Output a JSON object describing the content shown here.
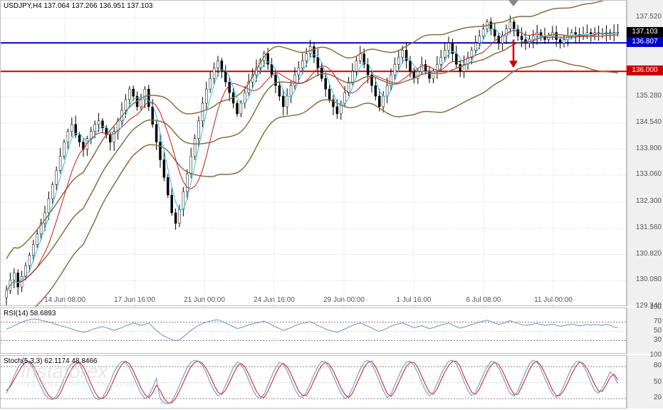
{
  "header": {
    "symbol_label": "USDJPY,H4",
    "ohlc": "137.064 137.266 136.951 137.103"
  },
  "main_chart": {
    "type": "candlestick",
    "background_color": "#ffffff",
    "grid_color": "#d0d0d0",
    "ylim": [
      129.34,
      138.0
    ],
    "yticks": [
      137.52,
      137.103,
      136.807,
      136.0,
      135.28,
      134.54,
      133.8,
      133.06,
      132.3,
      131.56,
      130.82,
      130.08,
      129.34
    ],
    "xticks": [
      "14 Jun 08:00",
      "17 Jun 16:00",
      "21 Jun 00:00",
      "24 Jun 16:00",
      "29 Jun 00:00",
      "1 Jul 16:00",
      "6 Jul 08:00",
      "11 Jul 00:00"
    ],
    "current_price_tag": {
      "value": "137.103",
      "color": "#000000"
    },
    "levels": [
      {
        "value": 136.807,
        "color": "#0000cc",
        "tag": "136.807"
      },
      {
        "value": 136.0,
        "color": "#cc0000",
        "tag": "136.000"
      }
    ],
    "indicators": {
      "bollinger": {
        "upper_color": "#8b6d3f",
        "lower_color": "#8b6d3f",
        "mid_color": "#8b6d3f",
        "line_width": 1.5
      },
      "ma_fast": {
        "color": "#29c5e6",
        "line_width": 1
      },
      "ma_slow": {
        "color": "#d01717",
        "line_width": 1
      }
    },
    "chart_data": {
      "n_bars": 160,
      "x_start": 8,
      "x_step": 5.4,
      "open": [
        129.6,
        129.8,
        130.1,
        130.3,
        129.9,
        130.2,
        130.5,
        130.8,
        131.1,
        131.4,
        131.7,
        132.0,
        132.4,
        132.8,
        133.2,
        133.6,
        134.0,
        134.3,
        134.5,
        134.2,
        134.0,
        133.8,
        134.1,
        134.3,
        134.5,
        134.6,
        134.4,
        134.2,
        134.0,
        134.3,
        134.6,
        134.9,
        135.2,
        135.5,
        135.3,
        135.0,
        135.2,
        135.5,
        135.0,
        134.5,
        134.0,
        133.5,
        133.0,
        132.5,
        132.0,
        131.7,
        132.1,
        132.6,
        133.1,
        133.6,
        134.1,
        134.6,
        135.1,
        135.5,
        135.8,
        136.1,
        136.3,
        136.0,
        135.7,
        135.4,
        135.1,
        134.8,
        135.1,
        135.4,
        135.7,
        135.9,
        136.1,
        136.3,
        136.5,
        136.2,
        135.9,
        135.6,
        135.3,
        135.0,
        135.3,
        135.6,
        135.9,
        136.1,
        136.3,
        136.5,
        136.7,
        136.4,
        136.1,
        135.8,
        135.5,
        135.2,
        135.0,
        134.8,
        135.1,
        135.4,
        135.7,
        136.0,
        136.3,
        136.5,
        136.2,
        135.9,
        135.6,
        135.3,
        135.0,
        135.3,
        135.6,
        135.9,
        136.2,
        136.4,
        136.6,
        136.3,
        136.0,
        135.8,
        136.0,
        136.2,
        136.0,
        135.8,
        136.0,
        136.2,
        136.4,
        136.6,
        136.8,
        136.5,
        136.2,
        136.0,
        136.2,
        136.4,
        136.6,
        136.8,
        137.0,
        137.2,
        137.4,
        137.2,
        137.0,
        136.8,
        137.0,
        137.2,
        137.4,
        137.2,
        137.0,
        136.9,
        136.8,
        136.9,
        137.0,
        137.1,
        137.0,
        136.9,
        137.0,
        137.1,
        136.9,
        136.8,
        136.9,
        137.0,
        137.1,
        137.05,
        137.0,
        137.05,
        137.1,
        137.05,
        137.1,
        137.08,
        137.06,
        137.1,
        137.08,
        137.1
      ],
      "close": [
        129.8,
        130.1,
        130.3,
        129.9,
        130.2,
        130.5,
        130.8,
        131.1,
        131.4,
        131.7,
        132.0,
        132.4,
        132.8,
        133.2,
        133.6,
        134.0,
        134.3,
        134.5,
        134.2,
        134.0,
        133.8,
        134.1,
        134.3,
        134.5,
        134.6,
        134.4,
        134.2,
        134.0,
        134.3,
        134.6,
        134.9,
        135.2,
        135.5,
        135.3,
        135.0,
        135.2,
        135.5,
        135.0,
        134.5,
        134.0,
        133.5,
        133.0,
        132.5,
        132.0,
        131.7,
        132.1,
        132.6,
        133.1,
        133.6,
        134.1,
        134.6,
        135.1,
        135.5,
        135.8,
        136.1,
        136.3,
        136.0,
        135.7,
        135.4,
        135.1,
        134.8,
        135.1,
        135.4,
        135.7,
        135.9,
        136.1,
        136.3,
        136.5,
        136.2,
        135.9,
        135.6,
        135.3,
        135.0,
        135.3,
        135.6,
        135.9,
        136.1,
        136.3,
        136.5,
        136.7,
        136.4,
        136.1,
        135.8,
        135.5,
        135.2,
        135.0,
        134.8,
        135.1,
        135.4,
        135.7,
        136.0,
        136.3,
        136.5,
        136.2,
        135.9,
        135.6,
        135.3,
        135.0,
        135.3,
        135.6,
        135.9,
        136.2,
        136.4,
        136.6,
        136.3,
        136.0,
        135.8,
        136.0,
        136.2,
        136.0,
        135.8,
        136.0,
        136.2,
        136.4,
        136.6,
        136.8,
        136.5,
        136.2,
        136.0,
        136.2,
        136.4,
        136.6,
        136.8,
        137.0,
        137.2,
        137.4,
        137.2,
        137.0,
        136.8,
        137.0,
        137.2,
        137.4,
        137.2,
        137.0,
        136.9,
        136.8,
        136.9,
        137.0,
        137.1,
        137.0,
        136.9,
        137.0,
        137.1,
        136.9,
        136.8,
        136.9,
        137.0,
        137.1,
        137.05,
        137.0,
        137.05,
        137.1,
        137.05,
        137.1,
        137.08,
        137.06,
        137.1,
        137.08,
        137.1,
        137.1
      ],
      "high_off": 0.25,
      "low_off": 0.25
    },
    "arrow": {
      "x": 720,
      "y_from": 136.9,
      "y_to": 136.1,
      "color": "#cc0000"
    }
  },
  "rsi": {
    "label": "RSI(14) 58.6893",
    "type": "line",
    "ylim": [
      0,
      100
    ],
    "yticks": [
      100,
      70,
      50,
      30
    ],
    "guide_levels": [
      70,
      30
    ],
    "line_color": "#6a8fc7",
    "line_width": 1,
    "values": [
      55,
      58,
      62,
      66,
      70,
      73,
      75,
      77,
      76,
      74,
      72,
      70,
      68,
      65,
      62,
      60,
      58,
      55,
      52,
      50,
      48,
      50,
      53,
      56,
      58,
      60,
      58,
      55,
      52,
      55,
      58,
      62,
      65,
      68,
      66,
      63,
      65,
      68,
      60,
      52,
      45,
      40,
      36,
      32,
      30,
      32,
      38,
      45,
      52,
      58,
      63,
      67,
      70,
      72,
      74,
      75,
      72,
      68,
      64,
      60,
      56,
      58,
      61,
      64,
      66,
      68,
      70,
      72,
      68,
      64,
      60,
      56,
      52,
      55,
      58,
      62,
      65,
      67,
      69,
      71,
      67,
      63,
      59,
      55,
      52,
      50,
      48,
      51,
      55,
      59,
      63,
      66,
      68,
      65,
      61,
      57,
      53,
      50,
      53,
      57,
      61,
      64,
      66,
      68,
      65,
      61,
      58,
      60,
      62,
      59,
      56,
      58,
      61,
      64,
      66,
      68,
      64,
      60,
      57,
      59,
      62,
      65,
      67,
      70,
      72,
      74,
      71,
      68,
      65,
      67,
      70,
      73,
      70,
      67,
      65,
      63,
      64,
      66,
      67,
      65,
      63,
      64,
      66,
      63,
      61,
      62,
      64,
      66,
      64,
      62,
      63,
      65,
      63,
      65,
      64,
      63,
      65,
      63,
      59,
      58
    ]
  },
  "stoch": {
    "label": "Stoch(5,3,3) 62.1174 48.8466",
    "type": "line",
    "ylim": [
      0,
      100
    ],
    "yticks": [
      100,
      80,
      50,
      20
    ],
    "guide_levels": [
      80,
      20
    ],
    "k_color": "#6a8fc7",
    "d_color": "#d01717",
    "line_width": 1,
    "k_values": [
      30,
      45,
      62,
      78,
      88,
      92,
      88,
      75,
      58,
      42,
      28,
      20,
      18,
      25,
      40,
      58,
      75,
      85,
      90,
      85,
      70,
      52,
      35,
      22,
      18,
      22,
      35,
      52,
      70,
      82,
      90,
      88,
      78,
      62,
      45,
      30,
      20,
      25,
      40,
      58,
      20,
      12,
      10,
      15,
      28,
      45,
      62,
      78,
      88,
      92,
      90,
      82,
      68,
      50,
      35,
      25,
      30,
      45,
      62,
      78,
      88,
      85,
      72,
      55,
      38,
      25,
      20,
      28,
      45,
      62,
      78,
      88,
      85,
      72,
      55,
      38,
      25,
      22,
      32,
      48,
      65,
      80,
      90,
      88,
      78,
      62,
      45,
      30,
      20,
      25,
      40,
      58,
      75,
      88,
      92,
      85,
      70,
      52,
      35,
      22,
      28,
      45,
      62,
      78,
      88,
      90,
      82,
      68,
      50,
      35,
      25,
      32,
      48,
      65,
      80,
      90,
      92,
      85,
      70,
      52,
      35,
      25,
      32,
      48,
      65,
      80,
      90,
      88,
      78,
      62,
      45,
      30,
      25,
      35,
      52,
      70,
      85,
      92,
      88,
      75,
      58,
      42,
      28,
      22,
      30,
      45,
      62,
      78,
      88,
      90,
      82,
      68,
      50,
      35,
      30,
      40,
      55,
      70,
      62,
      48
    ],
    "d_values": [
      35,
      42,
      55,
      68,
      80,
      88,
      90,
      82,
      68,
      52,
      38,
      26,
      20,
      20,
      30,
      46,
      62,
      76,
      85,
      88,
      80,
      65,
      48,
      32,
      22,
      20,
      26,
      40,
      56,
      72,
      84,
      90,
      85,
      72,
      56,
      40,
      28,
      22,
      30,
      45,
      35,
      20,
      12,
      12,
      20,
      34,
      50,
      66,
      80,
      88,
      90,
      86,
      76,
      62,
      46,
      32,
      28,
      36,
      50,
      66,
      80,
      86,
      80,
      66,
      50,
      34,
      24,
      22,
      34,
      50,
      66,
      80,
      86,
      80,
      66,
      50,
      34,
      26,
      26,
      38,
      54,
      70,
      82,
      88,
      84,
      72,
      56,
      40,
      28,
      22,
      30,
      46,
      62,
      78,
      88,
      90,
      80,
      64,
      46,
      30,
      24,
      34,
      50,
      66,
      80,
      88,
      88,
      78,
      62,
      46,
      32,
      28,
      38,
      54,
      70,
      82,
      90,
      90,
      80,
      62,
      46,
      32,
      28,
      38,
      54,
      70,
      82,
      88,
      84,
      72,
      56,
      40,
      28,
      28,
      42,
      58,
      74,
      86,
      90,
      82,
      68,
      52,
      36,
      26,
      26,
      36,
      50,
      66,
      80,
      88,
      86,
      76,
      62,
      46,
      34,
      34,
      46,
      60,
      66,
      55
    ]
  },
  "watermark": {
    "brand": "instaforex",
    "tagline": "INSTANT FOREX TRADING"
  }
}
